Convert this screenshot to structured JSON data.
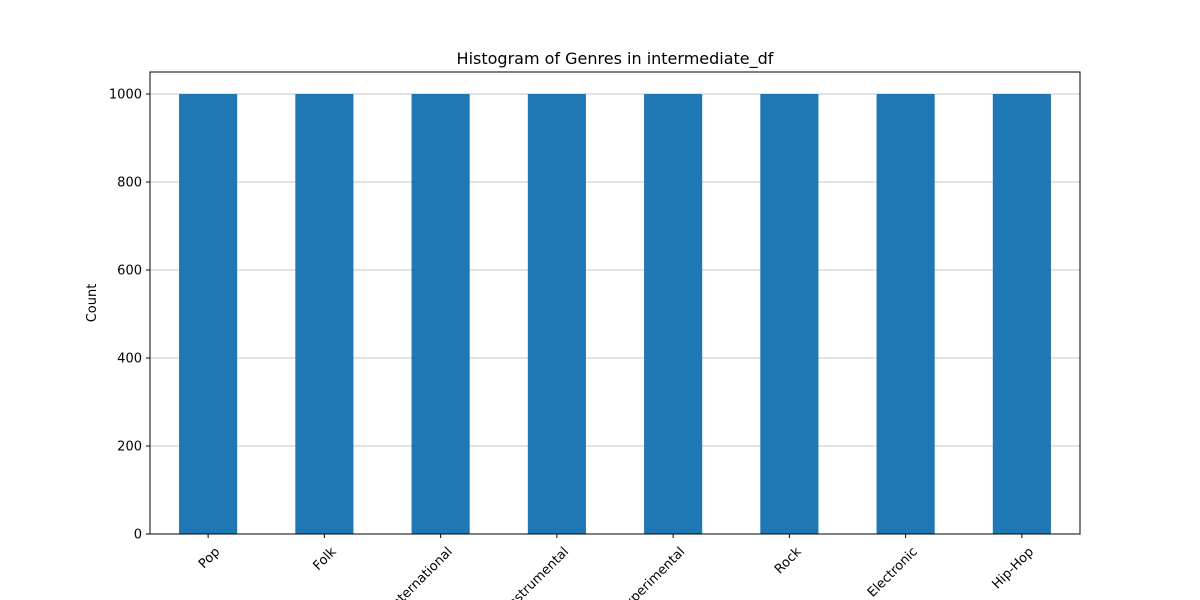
{
  "chart_data": {
    "type": "bar",
    "title": "Histogram of Genres in intermediate_df",
    "xlabel": "",
    "ylabel": "Count",
    "categories": [
      "Pop",
      "Folk",
      "International",
      "Instrumental",
      "Experimental",
      "Rock",
      "Electronic",
      "Hip-Hop"
    ],
    "values": [
      1000,
      1000,
      1000,
      1000,
      1000,
      1000,
      1000,
      1000
    ],
    "ylim": [
      0,
      1050
    ],
    "yticks": [
      0,
      200,
      400,
      600,
      800,
      1000
    ],
    "grid": "y-axis",
    "legend": "none",
    "bar_color": "#1f77b4"
  }
}
